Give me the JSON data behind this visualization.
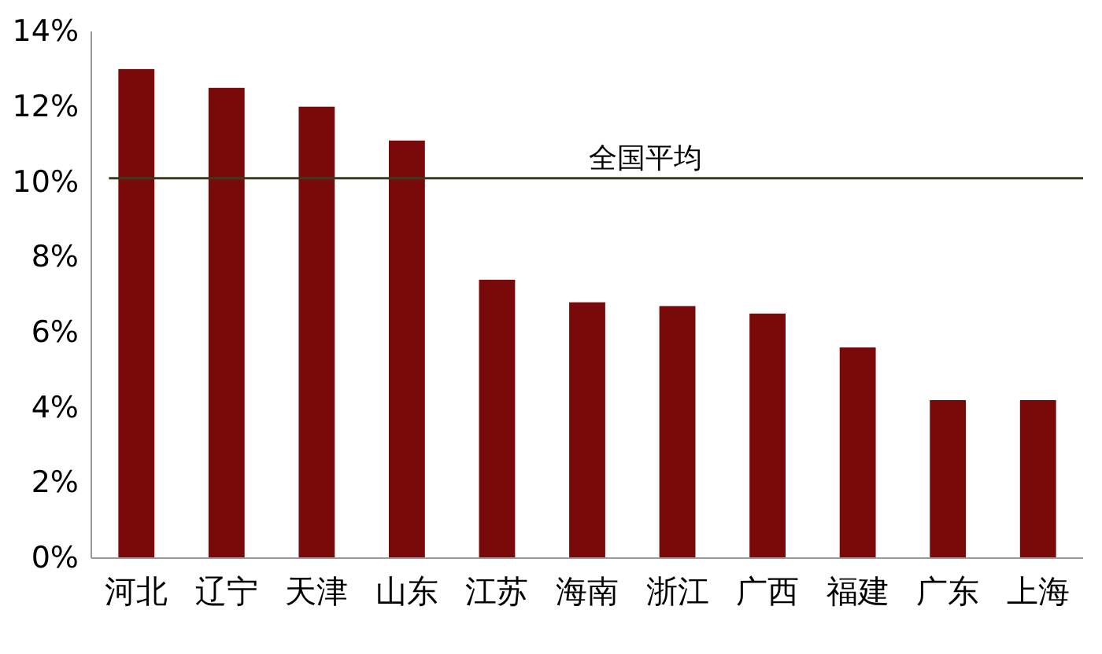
{
  "chart_data": {
    "type": "bar",
    "categories": [
      "河北",
      "辽宁",
      "天津",
      "山东",
      "江苏",
      "海南",
      "浙江",
      "广西",
      "福建",
      "广东",
      "上海"
    ],
    "values": [
      13.0,
      12.5,
      12.0,
      11.1,
      7.4,
      6.8,
      6.7,
      6.5,
      5.6,
      4.2,
      4.2
    ],
    "color": "#7a0a0a",
    "ylim": [
      0,
      14
    ],
    "yticks": [
      {
        "value": 0,
        "label": "0%"
      },
      {
        "value": 2,
        "label": "2%"
      },
      {
        "value": 4,
        "label": "4%"
      },
      {
        "value": 6,
        "label": "6%"
      },
      {
        "value": 8,
        "label": "8%"
      },
      {
        "value": 10,
        "label": "10%"
      },
      {
        "value": 12,
        "label": "12%"
      },
      {
        "value": 14,
        "label": "14%"
      }
    ],
    "ref_lines": [
      {
        "axis": "y",
        "value": 10.1,
        "label": "全国平均",
        "color": "#3b3b1f"
      }
    ],
    "grid": false
  }
}
